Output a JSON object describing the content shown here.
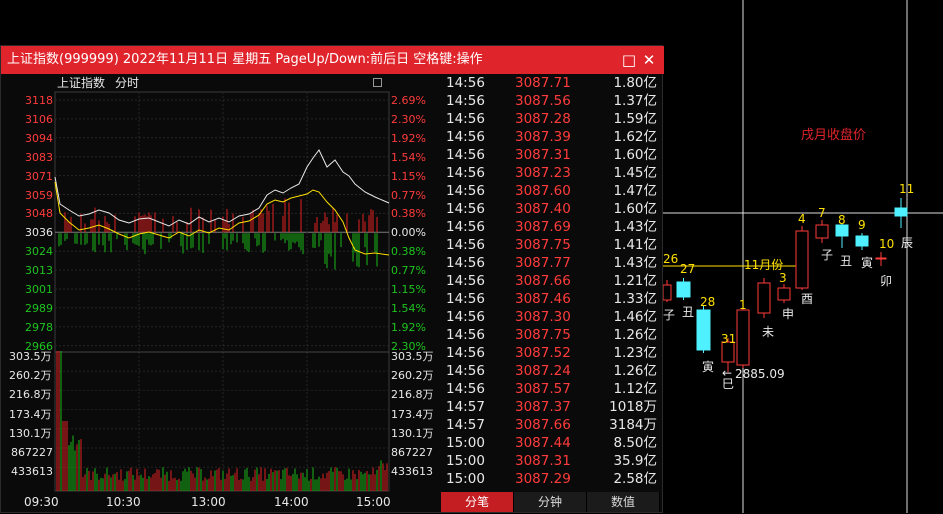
{
  "background_chart": {
    "title": "戌月收盘价",
    "marker_11yue": "11月份",
    "low_value": "2885.09",
    "bar_numbers": [
      "26",
      "27",
      "28",
      "31",
      "1",
      "11月份",
      "3",
      "4",
      "7",
      "8",
      "9",
      "10",
      "11"
    ],
    "zodiac": [
      "子",
      "丑",
      "寅",
      "巳",
      "未",
      "申",
      "酉",
      "子",
      "丑",
      "寅",
      "卯",
      "辰"
    ]
  },
  "popup": {
    "title": "上证指数(999999) 2022年11月11日 星期五 PageUp/Down:前后日 空格键:操作",
    "restore_icon": "□",
    "close_icon": "✕",
    "chart": {
      "index_name": "上证指数",
      "period": "分时",
      "price_ticks_left": [
        "3118",
        "3106",
        "3094",
        "3083",
        "3071",
        "3059",
        "3048",
        "3036",
        "3024",
        "3013",
        "3001",
        "2989",
        "2978",
        "2966"
      ],
      "pct_ticks_right": [
        "2.69%",
        "2.30%",
        "1.92%",
        "1.54%",
        "1.15%",
        "0.77%",
        "0.38%",
        "0.00%",
        "0.38%",
        "0.77%",
        "1.15%",
        "1.54%",
        "1.92%",
        "2.30%"
      ],
      "volume_ticks": [
        "303.5万",
        "260.2万",
        "216.8万",
        "173.4万",
        "130.1万",
        "867227",
        "433613"
      ],
      "time_ticks": [
        "09:30",
        "10:30",
        "13:00",
        "14:00",
        "15:00"
      ]
    },
    "trades": [
      {
        "time": "14:56",
        "price": "3087.71",
        "vol": "1.80亿"
      },
      {
        "time": "14:56",
        "price": "3087.56",
        "vol": "1.37亿"
      },
      {
        "time": "14:56",
        "price": "3087.28",
        "vol": "1.59亿"
      },
      {
        "time": "14:56",
        "price": "3087.39",
        "vol": "1.62亿"
      },
      {
        "time": "14:56",
        "price": "3087.31",
        "vol": "1.60亿"
      },
      {
        "time": "14:56",
        "price": "3087.23",
        "vol": "1.45亿"
      },
      {
        "time": "14:56",
        "price": "3087.60",
        "vol": "1.47亿"
      },
      {
        "time": "14:56",
        "price": "3087.40",
        "vol": "1.60亿"
      },
      {
        "time": "14:56",
        "price": "3087.69",
        "vol": "1.43亿"
      },
      {
        "time": "14:56",
        "price": "3087.75",
        "vol": "1.41亿"
      },
      {
        "time": "14:56",
        "price": "3087.77",
        "vol": "1.43亿"
      },
      {
        "time": "14:56",
        "price": "3087.66",
        "vol": "1.21亿"
      },
      {
        "time": "14:56",
        "price": "3087.46",
        "vol": "1.33亿"
      },
      {
        "time": "14:56",
        "price": "3087.30",
        "vol": "1.46亿"
      },
      {
        "time": "14:56",
        "price": "3087.75",
        "vol": "1.26亿"
      },
      {
        "time": "14:56",
        "price": "3087.52",
        "vol": "1.23亿"
      },
      {
        "time": "14:56",
        "price": "3087.24",
        "vol": "1.26亿"
      },
      {
        "time": "14:56",
        "price": "3087.57",
        "vol": "1.12亿"
      },
      {
        "time": "14:57",
        "price": "3087.37",
        "vol": "1018万"
      },
      {
        "time": "14:57",
        "price": "3087.66",
        "vol": "3184万"
      },
      {
        "time": "15:00",
        "price": "3087.44",
        "vol": "8.50亿"
      },
      {
        "time": "15:00",
        "price": "3087.31",
        "vol": "35.9亿"
      },
      {
        "time": "15:00",
        "price": "3087.29",
        "vol": "2.58亿"
      }
    ],
    "tabs": [
      "分笔",
      "分钟",
      "数值"
    ],
    "active_tab": 0
  }
}
